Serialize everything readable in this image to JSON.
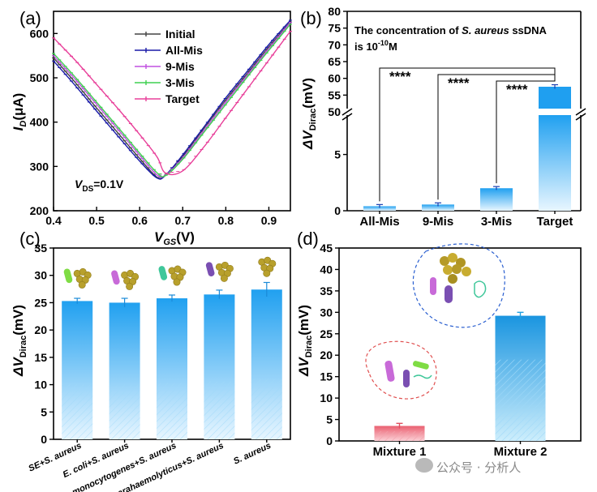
{
  "chart_data": [
    {
      "panel": "(a)",
      "type": "line",
      "xlabel": "V_GS(V)",
      "ylabel": "I_D(μA)",
      "xlim": [
        0.4,
        0.95
      ],
      "ylim": [
        200,
        650
      ],
      "x_ticks": [
        "0.4",
        "0.5",
        "0.6",
        "0.7",
        "0.8",
        "0.9"
      ],
      "y_ticks": [
        "200",
        "300",
        "400",
        "500",
        "600"
      ],
      "annotation": "V_DS=0.1V",
      "x": [
        0.4,
        0.45,
        0.5,
        0.55,
        0.6,
        0.64,
        0.66,
        0.7,
        0.75,
        0.8,
        0.85,
        0.9,
        0.95
      ],
      "series": [
        {
          "name": "Initial",
          "color": "#444444",
          "values": [
            545,
            490,
            432,
            375,
            318,
            276,
            281,
            323,
            387,
            450,
            510,
            570,
            626
          ]
        },
        {
          "name": "All-Mis",
          "color": "#1a1aa8",
          "values": [
            538,
            483,
            425,
            368,
            312,
            274,
            280,
            326,
            390,
            455,
            515,
            575,
            630
          ]
        },
        {
          "name": "9-Mis",
          "color": "#c050e0",
          "values": [
            550,
            497,
            440,
            383,
            325,
            281,
            280,
            319,
            382,
            445,
            506,
            566,
            625
          ]
        },
        {
          "name": "3-Mis",
          "color": "#3fd050",
          "values": [
            555,
            502,
            445,
            388,
            330,
            286,
            279,
            316,
            378,
            440,
            502,
            562,
            621
          ]
        },
        {
          "name": "Target",
          "color": "#e8409a",
          "values": [
            590,
            540,
            485,
            430,
            372,
            322,
            285,
            290,
            345,
            410,
            475,
            540,
            605
          ]
        }
      ]
    },
    {
      "panel": "(b)",
      "type": "bar",
      "title_line1_pre": "The concentration of ",
      "title_line1_species": "S. aureus",
      "title_line1_post": " ssDNA",
      "title_line2": "is  10",
      "title_line2_exp": "-10",
      "title_line2_unit": "M",
      "ylabel": "ΔV_Dirac(mV)",
      "categories": [
        "All-Mis",
        "9-Mis",
        "3-Mis",
        "Target"
      ],
      "values": [
        0.4,
        0.55,
        2.0,
        57.5
      ],
      "errors": [
        0.15,
        0.15,
        0.15,
        0.6
      ],
      "ylim_lower": [
        0,
        8.5
      ],
      "ylim_upper": [
        50,
        80
      ],
      "y_ticks_lower": [
        "0",
        "5"
      ],
      "y_ticks_upper": [
        "50",
        "55",
        "60",
        "65",
        "70",
        "75",
        "80"
      ],
      "significance": [
        "****",
        "****",
        "****"
      ]
    },
    {
      "panel": "(c)",
      "type": "bar",
      "ylabel": "ΔV_Dirac(mV)",
      "categories": [
        "SE+S. aureus",
        "E. coli+S. aureus",
        "L. monocytogenes+S. aureus",
        "V. parahaemolyticus+S. aureus",
        "S. aureus"
      ],
      "values": [
        25.3,
        25.0,
        25.8,
        26.5,
        27.4
      ],
      "errors": [
        0.5,
        0.8,
        0.6,
        0.8,
        1.3
      ],
      "ylim": [
        0,
        35
      ],
      "y_ticks": [
        "0",
        "5",
        "10",
        "15",
        "20",
        "25",
        "30",
        "35"
      ]
    },
    {
      "panel": "(d)",
      "type": "bar",
      "ylabel": "ΔV_Dirac(mV)",
      "categories": [
        "Mixture 1",
        "Mixture 2"
      ],
      "values": [
        3.5,
        29.2
      ],
      "errors": [
        0.6,
        0.8
      ],
      "colors": [
        "#e05060",
        "#22a0e0"
      ],
      "ylim": [
        0,
        45
      ],
      "y_ticks": [
        "0",
        "5",
        "10",
        "15",
        "20",
        "25",
        "30",
        "35",
        "40",
        "45"
      ]
    }
  ],
  "watermark": "公众号 · 分析人"
}
